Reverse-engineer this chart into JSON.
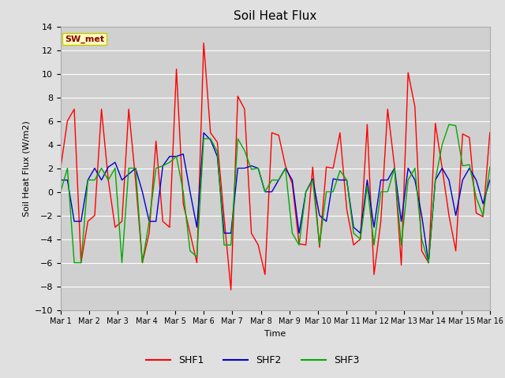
{
  "title": "Soil Heat Flux",
  "ylabel": "Soil Heat Flux (W/m2)",
  "xlabel": "Time",
  "ylim": [
    -10,
    14
  ],
  "fig_bg_color": "#e0e0e0",
  "plot_bg_color": "#d0d0d0",
  "annotation_text": "SW_met",
  "annotation_bg": "#ffffc0",
  "annotation_border": "#c8c800",
  "annotation_text_color": "#880000",
  "series_colors": [
    "#ff0000",
    "#0000cc",
    "#00aa00"
  ],
  "series_labels": [
    "SHF1",
    "SHF2",
    "SHF3"
  ],
  "xtick_labels": [
    "Mar 1",
    "Mar 2",
    "Mar 3",
    "Mar 4",
    "Mar 5",
    "Mar 6",
    "Mar 7",
    "Mar 8",
    "Mar 9",
    "Mar 10",
    "Mar 11",
    "Mar 12",
    "Mar 13",
    "Mar 14",
    "Mar 15",
    "Mar 16"
  ],
  "shf1": [
    2.0,
    6.0,
    7.0,
    -6.0,
    -2.5,
    -2.0,
    7.0,
    1.0,
    -3.0,
    -2.5,
    7.0,
    1.0,
    -6.0,
    -3.5,
    4.3,
    -2.5,
    -3.0,
    10.4,
    -1.0,
    -3.5,
    -6.0,
    12.6,
    5.0,
    4.2,
    -2.2,
    -8.3,
    8.1,
    7.0,
    -3.5,
    -4.5,
    -7.0,
    5.0,
    4.8,
    2.2,
    0.7,
    -4.4,
    -4.5,
    2.1,
    -4.7,
    2.1,
    2.0,
    5.0,
    -1.5,
    -4.5,
    -4.0,
    5.7,
    -7.0,
    -2.5,
    7.0,
    2.2,
    -6.2,
    10.1,
    7.2,
    -5.0,
    -6.0,
    5.8,
    2.0,
    -2.0,
    -5.0,
    4.9,
    4.6,
    -1.8,
    -2.1,
    5.0
  ],
  "shf2": [
    1.0,
    1.0,
    -2.5,
    -2.5,
    1.0,
    2.0,
    1.0,
    2.1,
    2.5,
    1.0,
    1.5,
    2.0,
    0.0,
    -2.5,
    -2.5,
    2.2,
    3.0,
    3.0,
    3.2,
    0.0,
    -3.0,
    5.0,
    4.4,
    3.0,
    -3.5,
    -3.5,
    2.0,
    2.0,
    2.2,
    2.0,
    0.0,
    0.0,
    1.0,
    2.0,
    1.0,
    -3.5,
    0.0,
    1.1,
    -2.0,
    -2.5,
    1.1,
    1.0,
    1.0,
    -3.0,
    -3.5,
    1.0,
    -3.0,
    1.0,
    1.0,
    2.0,
    -2.5,
    2.0,
    1.0,
    -2.0,
    -6.0,
    1.0,
    2.0,
    1.0,
    -2.0,
    1.0,
    2.0,
    1.0,
    -1.0,
    1.0
  ],
  "shf3": [
    0.0,
    2.0,
    -6.0,
    -6.0,
    1.0,
    1.0,
    2.0,
    1.0,
    2.0,
    -6.0,
    2.0,
    2.0,
    -6.0,
    -2.5,
    2.0,
    2.2,
    2.5,
    3.0,
    0.0,
    -5.0,
    -5.5,
    4.5,
    4.5,
    3.4,
    -4.5,
    -4.5,
    4.5,
    3.5,
    1.9,
    2.0,
    0.0,
    1.0,
    1.0,
    2.0,
    -3.5,
    -4.5,
    0.0,
    1.0,
    -4.5,
    0.0,
    0.0,
    1.8,
    1.0,
    -3.5,
    -4.0,
    0.5,
    -4.5,
    0.0,
    0.0,
    2.0,
    -4.5,
    1.0,
    2.0,
    -4.0,
    -6.0,
    1.0,
    4.0,
    5.7,
    5.6,
    2.2,
    2.3,
    -0.5,
    -2.0,
    2.1
  ]
}
